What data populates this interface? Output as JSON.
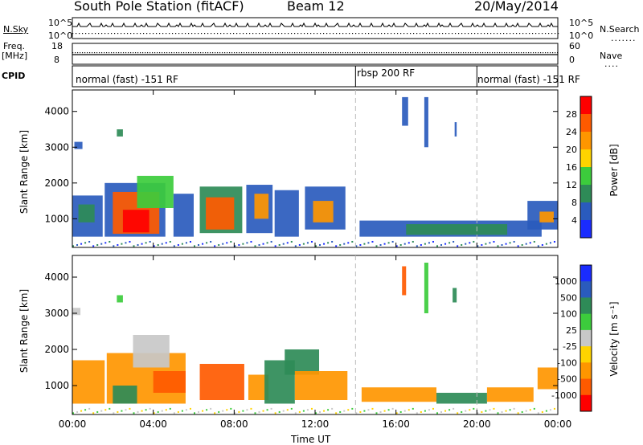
{
  "header": {
    "station": "South Pole Station (fitACF)",
    "beam": "Beam 12",
    "date": "20/May/2014"
  },
  "top_panels": {
    "nsky_label": "N.Sky",
    "nsearch_label": "N.Search",
    "noise_ticks": [
      "10^5",
      "10^0"
    ],
    "freq_label_1": "Freq.",
    "freq_label_2": "[MHz]",
    "freq_ticks": [
      "18",
      "8"
    ],
    "nave_label": "Nave",
    "nave_ticks": [
      "60",
      "0"
    ],
    "cpid_label": "CPID",
    "cpid_segments": [
      {
        "label": "normal (fast) -151 RF",
        "start_h": 0,
        "end_h": 14
      },
      {
        "label": "rbsp 200 RF",
        "start_h": 14,
        "end_h": 20
      },
      {
        "label": "normal (fast) -151 RF",
        "start_h": 20,
        "end_h": 24
      }
    ]
  },
  "chart_data": [
    {
      "type": "heatmap",
      "name": "power",
      "xlabel": "Time UT",
      "ylabel": "Slant Range [km]",
      "xlim": [
        0,
        24
      ],
      "ylim": [
        200,
        4600
      ],
      "xticks": [
        "00:00",
        "04:00",
        "08:00",
        "12:00",
        "16:00",
        "20:00",
        "00:00"
      ],
      "yticks": [
        "1000",
        "2000",
        "3000",
        "4000"
      ],
      "colorbar": {
        "label": "Power [dB]",
        "ticks": [
          "28",
          "24",
          "20",
          "16",
          "12",
          "8",
          "4"
        ],
        "colors": [
          "#ff0000",
          "#ff5a00",
          "#ff9600",
          "#ffd400",
          "#3ccc3c",
          "#2e8b57",
          "#2a5bbd",
          "#1a2cff"
        ]
      },
      "patches": [
        {
          "t0": 0.0,
          "t1": 1.5,
          "r0": 500,
          "r1": 1650,
          "color": "#2a5bbd"
        },
        {
          "t0": 0.3,
          "t1": 1.1,
          "r0": 900,
          "r1": 1400,
          "color": "#2e8b57"
        },
        {
          "t0": 1.6,
          "t1": 4.6,
          "r0": 500,
          "r1": 2000,
          "color": "#2a5bbd"
        },
        {
          "t0": 2.0,
          "t1": 4.3,
          "r0": 580,
          "r1": 1750,
          "color": "#ff5a00"
        },
        {
          "t0": 2.5,
          "t1": 3.8,
          "r0": 620,
          "r1": 1250,
          "color": "#ff0000"
        },
        {
          "t0": 3.2,
          "t1": 5.0,
          "r0": 1300,
          "r1": 2200,
          "color": "#3ccc3c"
        },
        {
          "t0": 5.0,
          "t1": 6.0,
          "r0": 500,
          "r1": 1700,
          "color": "#2a5bbd"
        },
        {
          "t0": 6.3,
          "t1": 8.4,
          "r0": 600,
          "r1": 1900,
          "color": "#2e8b57"
        },
        {
          "t0": 6.6,
          "t1": 8.0,
          "r0": 700,
          "r1": 1600,
          "color": "#ff5a00"
        },
        {
          "t0": 8.6,
          "t1": 9.9,
          "r0": 600,
          "r1": 1950,
          "color": "#2a5bbd"
        },
        {
          "t0": 9.0,
          "t1": 9.7,
          "r0": 1000,
          "r1": 1700,
          "color": "#ff9600"
        },
        {
          "t0": 10.0,
          "t1": 11.2,
          "r0": 500,
          "r1": 1800,
          "color": "#2a5bbd"
        },
        {
          "t0": 11.5,
          "t1": 13.5,
          "r0": 700,
          "r1": 1900,
          "color": "#2a5bbd"
        },
        {
          "t0": 11.9,
          "t1": 12.9,
          "r0": 900,
          "r1": 1500,
          "color": "#ff9600"
        },
        {
          "t0": 14.2,
          "t1": 23.2,
          "r0": 500,
          "r1": 950,
          "color": "#2a5bbd"
        },
        {
          "t0": 16.5,
          "t1": 21.5,
          "r0": 550,
          "r1": 850,
          "color": "#2e8b57"
        },
        {
          "t0": 22.5,
          "t1": 24.0,
          "r0": 700,
          "r1": 1500,
          "color": "#2a5bbd"
        },
        {
          "t0": 23.1,
          "t1": 23.8,
          "r0": 900,
          "r1": 1200,
          "color": "#ff9600"
        },
        {
          "t0": 0.1,
          "t1": 0.5,
          "r0": 2950,
          "r1": 3150,
          "color": "#2a5bbd"
        },
        {
          "t0": 2.2,
          "t1": 2.5,
          "r0": 3300,
          "r1": 3500,
          "color": "#2e8b57"
        },
        {
          "t0": 16.3,
          "t1": 16.6,
          "r0": 3600,
          "r1": 4400,
          "color": "#2a5bbd"
        },
        {
          "t0": 17.4,
          "t1": 17.6,
          "r0": 3000,
          "r1": 4400,
          "color": "#2a5bbd"
        },
        {
          "t0": 18.9,
          "t1": 19.0,
          "r0": 3300,
          "r1": 3700,
          "color": "#2a5bbd"
        }
      ]
    },
    {
      "type": "heatmap",
      "name": "velocity",
      "xlabel": "Time UT",
      "ylabel": "Slant Range [km]",
      "xlim": [
        0,
        24
      ],
      "ylim": [
        200,
        4600
      ],
      "xticks": [
        "00:00",
        "04:00",
        "08:00",
        "12:00",
        "16:00",
        "20:00",
        "00:00"
      ],
      "yticks": [
        "1000",
        "2000",
        "3000",
        "4000"
      ],
      "colorbar": {
        "label": "Velocity [m s⁻¹]",
        "ticks": [
          "1000",
          "500",
          "100",
          "25",
          "-25",
          "-100",
          "-500",
          "-1000"
        ],
        "colors": [
          "#1a2cff",
          "#2a5bbd",
          "#2e8b57",
          "#3ccc3c",
          "#c8c8c8",
          "#ffd400",
          "#ff9600",
          "#ff5a00",
          "#ff0000"
        ]
      },
      "patches": [
        {
          "t0": 0.0,
          "t1": 1.6,
          "r0": 500,
          "r1": 1700,
          "color": "#ff9600"
        },
        {
          "t0": 1.7,
          "t1": 5.6,
          "r0": 500,
          "r1": 1900,
          "color": "#ff9600"
        },
        {
          "t0": 2.0,
          "t1": 3.2,
          "r0": 500,
          "r1": 1000,
          "color": "#2e8b57"
        },
        {
          "t0": 3.0,
          "t1": 4.8,
          "r0": 1500,
          "r1": 2400,
          "color": "#c8c8c8"
        },
        {
          "t0": 4.0,
          "t1": 5.6,
          "r0": 800,
          "r1": 1400,
          "color": "#ff5a00"
        },
        {
          "t0": 6.3,
          "t1": 8.5,
          "r0": 600,
          "r1": 1600,
          "color": "#ff5a00"
        },
        {
          "t0": 8.7,
          "t1": 9.7,
          "r0": 600,
          "r1": 1300,
          "color": "#ff9600"
        },
        {
          "t0": 9.5,
          "t1": 11.0,
          "r0": 500,
          "r1": 1700,
          "color": "#2e8b57"
        },
        {
          "t0": 10.5,
          "t1": 12.2,
          "r0": 1300,
          "r1": 2000,
          "color": "#2e8b57"
        },
        {
          "t0": 11.0,
          "t1": 13.6,
          "r0": 600,
          "r1": 1400,
          "color": "#ff9600"
        },
        {
          "t0": 14.3,
          "t1": 18.0,
          "r0": 550,
          "r1": 950,
          "color": "#ff9600"
        },
        {
          "t0": 18.0,
          "t1": 20.5,
          "r0": 500,
          "r1": 800,
          "color": "#2e8b57"
        },
        {
          "t0": 20.5,
          "t1": 22.8,
          "r0": 550,
          "r1": 950,
          "color": "#ff9600"
        },
        {
          "t0": 23.0,
          "t1": 24.0,
          "r0": 900,
          "r1": 1500,
          "color": "#ff9600"
        },
        {
          "t0": 0.0,
          "t1": 0.4,
          "r0": 2950,
          "r1": 3150,
          "color": "#c8c8c8"
        },
        {
          "t0": 2.2,
          "t1": 2.5,
          "r0": 3300,
          "r1": 3500,
          "color": "#3ccc3c"
        },
        {
          "t0": 16.3,
          "t1": 16.5,
          "r0": 3500,
          "r1": 4300,
          "color": "#ff5a00"
        },
        {
          "t0": 17.4,
          "t1": 17.6,
          "r0": 3000,
          "r1": 4400,
          "color": "#3ccc3c"
        },
        {
          "t0": 18.8,
          "t1": 19.0,
          "r0": 3300,
          "r1": 3700,
          "color": "#2e8b57"
        }
      ]
    }
  ]
}
